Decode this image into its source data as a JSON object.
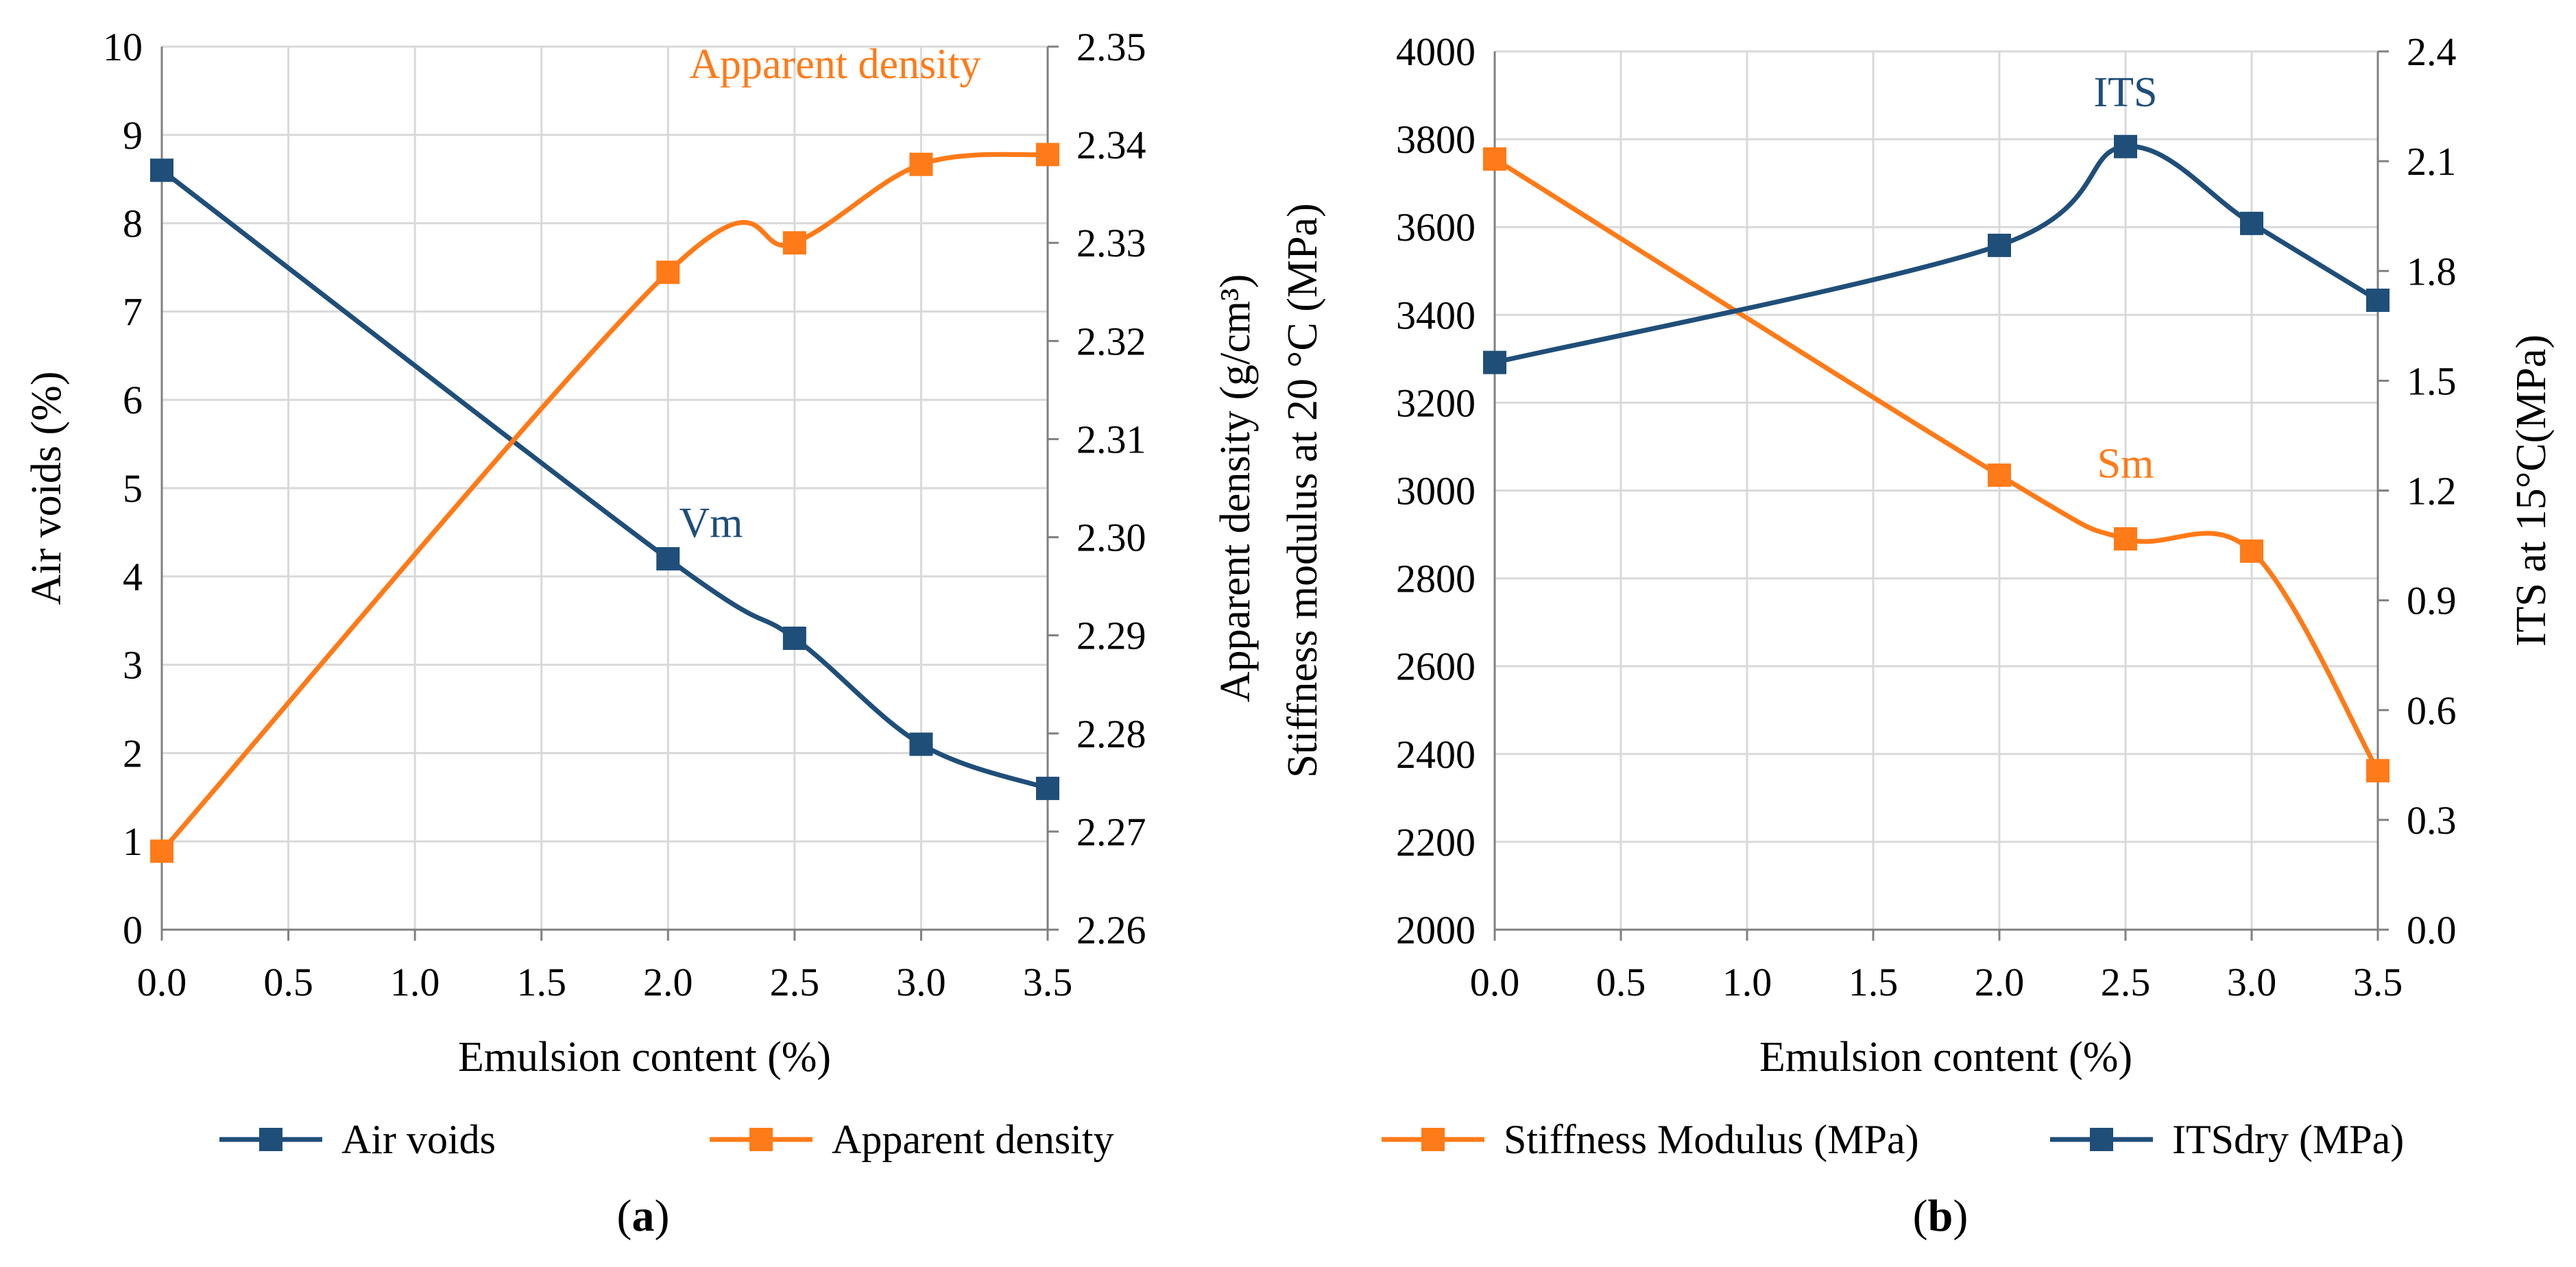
{
  "colors": {
    "blue": "#1f4e79",
    "orange": "#ff7a18"
  },
  "chart_data": [
    {
      "id": "a",
      "type": "line",
      "caption_open": "(",
      "caption_letter": "a",
      "caption_close": ")",
      "xlabel": "Emulsion content (%)",
      "ylabel_left": "Air voids (%)",
      "ylabel_right": "Apparent density (g/cm³)",
      "x_ticks": [
        "0.0",
        "0.5",
        "1.0",
        "1.5",
        "2.0",
        "2.5",
        "3.0",
        "3.5"
      ],
      "xlim": [
        0,
        3.5
      ],
      "y_left_ticks": [
        "0",
        "1",
        "2",
        "3",
        "4",
        "5",
        "6",
        "7",
        "8",
        "9",
        "10"
      ],
      "ylim_left": [
        0,
        10
      ],
      "y_right_ticks": [
        "2.26",
        "2.27",
        "2.28",
        "2.29",
        "2.30",
        "2.31",
        "2.32",
        "2.33",
        "2.34",
        "2.35"
      ],
      "ylim_right": [
        2.26,
        2.35
      ],
      "series": [
        {
          "name": "Air voids",
          "axis": "left",
          "color": "#1f4e79",
          "x": [
            0.0,
            2.0,
            2.5,
            3.0,
            3.5
          ],
          "values": [
            8.6,
            4.2,
            3.3,
            2.1,
            1.6
          ]
        },
        {
          "name": "Apparent density",
          "axis": "right",
          "color": "#ff7a18",
          "x": [
            0.0,
            2.0,
            2.5,
            3.0,
            3.5
          ],
          "values": [
            2.268,
            2.327,
            2.33,
            2.338,
            2.339
          ]
        }
      ],
      "annotations": [
        {
          "text": "Vm",
          "series": 0,
          "x": 2.17,
          "y": 4.45
        },
        {
          "text": "Apparent density",
          "series": 1,
          "x": 2.66,
          "y": 2.3468
        }
      ]
    },
    {
      "id": "b",
      "type": "line",
      "caption_open": "(",
      "caption_letter": "b",
      "caption_close": ")",
      "xlabel": "Emulsion content (%)",
      "ylabel_left": "Stiffness modulus at 20 °C (MPa)",
      "ylabel_right": "ITS at 15°C(MPa)",
      "x_ticks": [
        "0.0",
        "0.5",
        "1.0",
        "1.5",
        "2.0",
        "2.5",
        "3.0",
        "3.5"
      ],
      "xlim": [
        0,
        3.5
      ],
      "y_left_ticks": [
        "2000",
        "2200",
        "2400",
        "2600",
        "2800",
        "3000",
        "3200",
        "3400",
        "3600",
        "3800",
        "4000"
      ],
      "ylim_left": [
        2000,
        4000
      ],
      "y_right_ticks": [
        "0.0",
        "0.3",
        "0.6",
        "0.9",
        "1.2",
        "1.5",
        "1.8",
        "2.1",
        "2.4"
      ],
      "ylim_right": [
        0,
        2.4
      ],
      "series": [
        {
          "name": "Stiffness Modulus  (MPa)",
          "axis": "left",
          "color": "#ff7a18",
          "x": [
            0.0,
            2.0,
            2.5,
            3.0,
            3.5
          ],
          "values": [
            3755,
            3035,
            2890,
            2862,
            2362
          ]
        },
        {
          "name": "ITSdry (MPa)",
          "axis": "right",
          "color": "#1f4e79",
          "x": [
            0.0,
            2.0,
            2.5,
            3.0,
            3.5
          ],
          "values": [
            1.55,
            1.87,
            2.14,
            1.93,
            1.72
          ]
        }
      ],
      "annotations": [
        {
          "text": "ITS",
          "series": 1,
          "x": 2.5,
          "y": 2.25
        },
        {
          "text": "Sm",
          "series": 0,
          "x": 2.5,
          "y": 3030
        }
      ]
    }
  ]
}
